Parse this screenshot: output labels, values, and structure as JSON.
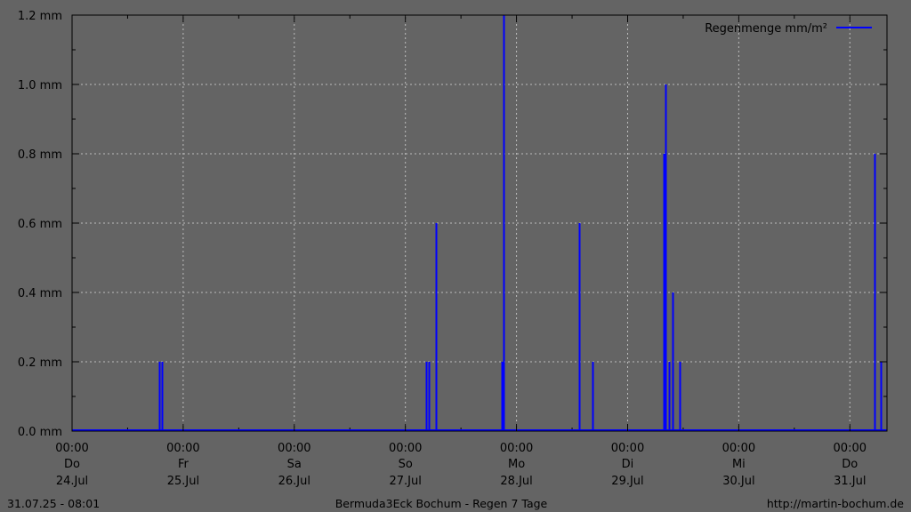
{
  "chart_data": {
    "type": "bar",
    "title": "Bermuda3Eck Bochum - Regen 7 Tage",
    "ylabel": "",
    "xlabel": "",
    "y_unit": "mm",
    "ylim": [
      0,
      1.2
    ],
    "yticks": [
      {
        "value": 0.0,
        "label": "0.0 mm"
      },
      {
        "value": 0.2,
        "label": "0.2 mm"
      },
      {
        "value": 0.4,
        "label": "0.4 mm"
      },
      {
        "value": 0.6,
        "label": "0.6 mm"
      },
      {
        "value": 0.8,
        "label": "0.8 mm"
      },
      {
        "value": 1.0,
        "label": "1.0 mm"
      },
      {
        "value": 1.2,
        "label": "1.2 mm"
      }
    ],
    "xlim": [
      "2025-07-24 00:00",
      "2025-07-31 08:01"
    ],
    "xticks": [
      {
        "time": "00:00",
        "day": "Do",
        "date": "24.Jul"
      },
      {
        "time": "00:00",
        "day": "Fr",
        "date": "25.Jul"
      },
      {
        "time": "00:00",
        "day": "Sa",
        "date": "26.Jul"
      },
      {
        "time": "00:00",
        "day": "So",
        "date": "27.Jul"
      },
      {
        "time": "00:00",
        "day": "Mo",
        "date": "28.Jul"
      },
      {
        "time": "00:00",
        "day": "Di",
        "date": "29.Jul"
      },
      {
        "time": "00:00",
        "day": "Mi",
        "date": "30.Jul"
      },
      {
        "time": "00:00",
        "day": "Do",
        "date": "31.Jul"
      }
    ],
    "grid": true,
    "legend_position": "top-right",
    "series": [
      {
        "name": "Regenmenge mm/m²",
        "color": "#0000ff",
        "points": [
          {
            "t": "2025-07-24 18:45",
            "v": 0.2
          },
          {
            "t": "2025-07-24 19:30",
            "v": 0.2
          },
          {
            "t": "2025-07-27 04:30",
            "v": 0.2
          },
          {
            "t": "2025-07-27 05:00",
            "v": 0.2
          },
          {
            "t": "2025-07-27 06:30",
            "v": 0.6
          },
          {
            "t": "2025-07-27 20:45",
            "v": 0.2
          },
          {
            "t": "2025-07-27 21:15",
            "v": 1.2
          },
          {
            "t": "2025-07-28 13:30",
            "v": 0.6
          },
          {
            "t": "2025-07-28 16:30",
            "v": 0.2
          },
          {
            "t": "2025-07-29 07:45",
            "v": 0.8
          },
          {
            "t": "2025-07-29 08:15",
            "v": 1.0
          },
          {
            "t": "2025-07-29 09:00",
            "v": 0.2
          },
          {
            "t": "2025-07-29 09:45",
            "v": 0.4
          },
          {
            "t": "2025-07-29 11:15",
            "v": 0.2
          },
          {
            "t": "2025-07-31 05:15",
            "v": 0.8
          },
          {
            "t": "2025-07-31 06:45",
            "v": 0.2
          }
        ]
      }
    ]
  },
  "footer": {
    "timestamp": "31.07.25 - 08:01",
    "title": "Bermuda3Eck Bochum - Regen 7 Tage",
    "url": "http://martin-bochum.de"
  }
}
